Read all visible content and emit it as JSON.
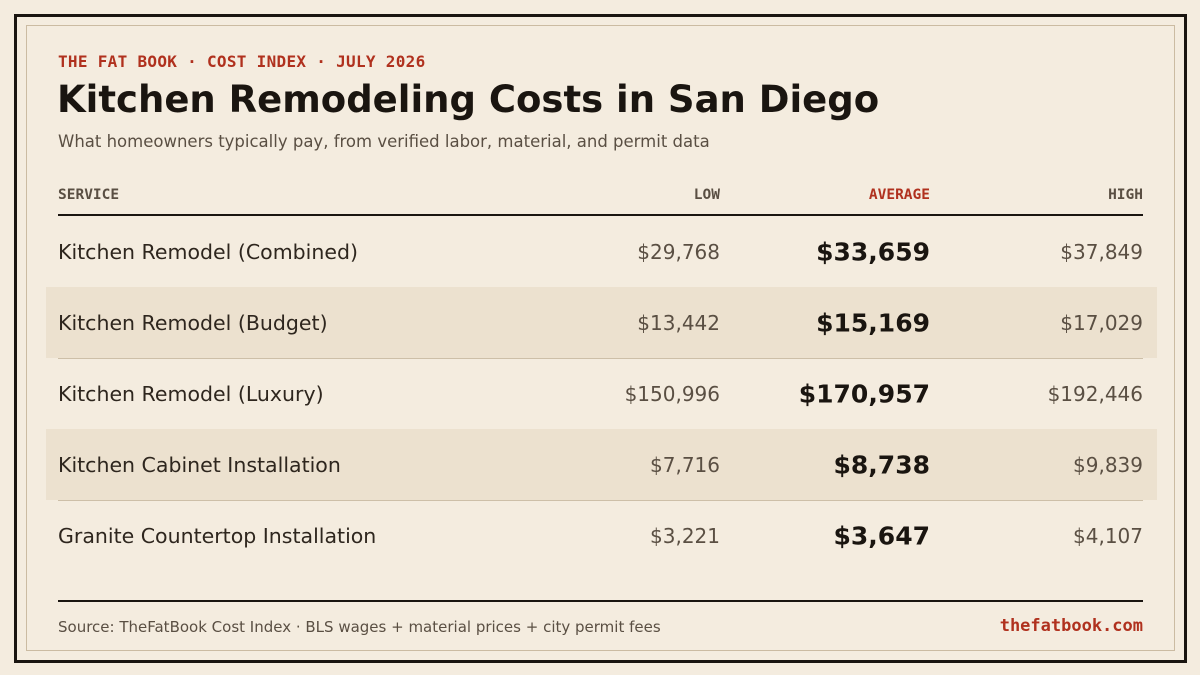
{
  "header": {
    "eyebrow": "THE FAT BOOK · COST INDEX · JULY 2026",
    "title": "Kitchen Remodeling Costs in San Diego",
    "subtitle": "What homeowners typically pay, from verified labor, material, and permit data"
  },
  "columns": {
    "service": "SERVICE",
    "low": "LOW",
    "average": "AVERAGE",
    "high": "HIGH"
  },
  "colors": {
    "accent": "#b0311e",
    "ink": "#1a1510",
    "background": "#f4ecdf",
    "row_shade": "#ece1cf"
  },
  "chart_data": {
    "type": "table",
    "title": "Kitchen Remodeling Costs in San Diego",
    "columns": [
      "SERVICE",
      "LOW",
      "AVERAGE",
      "HIGH"
    ],
    "rows": [
      {
        "service": "Kitchen Remodel (Combined)",
        "low": "$29,768",
        "average": "$33,659",
        "high": "$37,849"
      },
      {
        "service": "Kitchen Remodel (Budget)",
        "low": "$13,442",
        "average": "$15,169",
        "high": "$17,029"
      },
      {
        "service": "Kitchen Remodel (Luxury)",
        "low": "$150,996",
        "average": "$170,957",
        "high": "$192,446"
      },
      {
        "service": "Kitchen Cabinet Installation",
        "low": "$7,716",
        "average": "$8,738",
        "high": "$9,839"
      },
      {
        "service": "Granite Countertop Installation",
        "low": "$3,221",
        "average": "$3,647",
        "high": "$4,107"
      }
    ]
  },
  "footer": {
    "source": "Source: TheFatBook Cost Index · BLS wages + material prices + city permit fees",
    "site": "thefatbook.com"
  }
}
